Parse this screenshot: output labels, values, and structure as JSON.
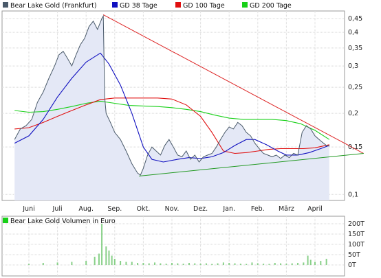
{
  "chart_data": [
    {
      "type": "line",
      "y_scale": "log",
      "ylim": [
        0.095,
        0.48
      ],
      "y_ticks": [
        "0,45",
        "0,4",
        "0,35",
        "0,3",
        "0,25",
        "0,2",
        "0,15",
        "0,1"
      ],
      "y_tick_values": [
        0.45,
        0.4,
        0.35,
        0.3,
        0.25,
        0.2,
        0.15,
        0.1
      ],
      "x_ticks": [
        "Juni",
        "Juli",
        "Aug.",
        "Sep.",
        "Okt.",
        "Nov.",
        "Dez.",
        "Jan.",
        "Feb.",
        "März",
        "April"
      ],
      "legend": [
        "Bear Lake Gold (Frankfurt)",
        "GD 38 Tage",
        "GD 100 Tage",
        "GD 200 Tage"
      ],
      "colors": {
        "price": "#4a5a6a",
        "area": "#e4e8f6",
        "gd38": "#1010c0",
        "gd100": "#e01010",
        "gd200": "#18d018",
        "trend_upper": "#dd2222",
        "trend_lower": "#229922"
      },
      "series": [
        {
          "name": "Bear Lake Gold (Frankfurt)",
          "points": [
            [
              -0.5,
              0.16
            ],
            [
              -0.3,
              0.175
            ],
            [
              -0.1,
              0.18
            ],
            [
              0.1,
              0.19
            ],
            [
              0.3,
              0.22
            ],
            [
              0.5,
              0.24
            ],
            [
              0.7,
              0.27
            ],
            [
              0.9,
              0.3
            ],
            [
              1.05,
              0.33
            ],
            [
              1.2,
              0.34
            ],
            [
              1.35,
              0.32
            ],
            [
              1.5,
              0.3
            ],
            [
              1.65,
              0.33
            ],
            [
              1.8,
              0.36
            ],
            [
              1.95,
              0.38
            ],
            [
              2.1,
              0.42
            ],
            [
              2.25,
              0.44
            ],
            [
              2.4,
              0.41
            ],
            [
              2.55,
              0.45
            ],
            [
              2.6,
              0.46
            ],
            [
              2.65,
              0.23
            ],
            [
              2.7,
              0.2
            ],
            [
              2.85,
              0.185
            ],
            [
              3.0,
              0.17
            ],
            [
              3.2,
              0.16
            ],
            [
              3.4,
              0.145
            ],
            [
              3.6,
              0.13
            ],
            [
              3.8,
              0.12
            ],
            [
              3.9,
              0.118
            ],
            [
              4.0,
              0.125
            ],
            [
              4.15,
              0.14
            ],
            [
              4.3,
              0.15
            ],
            [
              4.45,
              0.145
            ],
            [
              4.6,
              0.14
            ],
            [
              4.75,
              0.152
            ],
            [
              4.9,
              0.16
            ],
            [
              5.05,
              0.15
            ],
            [
              5.2,
              0.14
            ],
            [
              5.35,
              0.138
            ],
            [
              5.5,
              0.145
            ],
            [
              5.65,
              0.135
            ],
            [
              5.8,
              0.14
            ],
            [
              5.95,
              0.132
            ],
            [
              6.1,
              0.138
            ],
            [
              6.25,
              0.14
            ],
            [
              6.4,
              0.142
            ],
            [
              6.55,
              0.15
            ],
            [
              6.7,
              0.16
            ],
            [
              6.85,
              0.17
            ],
            [
              7.0,
              0.178
            ],
            [
              7.15,
              0.175
            ],
            [
              7.3,
              0.185
            ],
            [
              7.45,
              0.18
            ],
            [
              7.6,
              0.17
            ],
            [
              7.75,
              0.165
            ],
            [
              7.9,
              0.155
            ],
            [
              8.05,
              0.148
            ],
            [
              8.2,
              0.142
            ],
            [
              8.35,
              0.14
            ],
            [
              8.5,
              0.138
            ],
            [
              8.65,
              0.14
            ],
            [
              8.8,
              0.136
            ],
            [
              8.95,
              0.14
            ],
            [
              9.1,
              0.137
            ],
            [
              9.25,
              0.142
            ],
            [
              9.4,
              0.14
            ],
            [
              9.55,
              0.17
            ],
            [
              9.7,
              0.18
            ],
            [
              9.85,
              0.175
            ],
            [
              10.0,
              0.165
            ],
            [
              10.2,
              0.158
            ],
            [
              10.4,
              0.152
            ],
            [
              10.5,
              0.151
            ]
          ]
        },
        {
          "name": "GD 38 Tage",
          "points": [
            [
              -0.5,
              0.155
            ],
            [
              0.0,
              0.165
            ],
            [
              0.5,
              0.19
            ],
            [
              1.0,
              0.23
            ],
            [
              1.5,
              0.27
            ],
            [
              2.0,
              0.31
            ],
            [
              2.5,
              0.335
            ],
            [
              2.8,
              0.305
            ],
            [
              3.2,
              0.255
            ],
            [
              3.6,
              0.2
            ],
            [
              4.0,
              0.15
            ],
            [
              4.3,
              0.135
            ],
            [
              4.7,
              0.132
            ],
            [
              5.2,
              0.135
            ],
            [
              5.6,
              0.137
            ],
            [
              6.0,
              0.136
            ],
            [
              6.4,
              0.138
            ],
            [
              6.8,
              0.143
            ],
            [
              7.2,
              0.152
            ],
            [
              7.6,
              0.16
            ],
            [
              7.9,
              0.16
            ],
            [
              8.3,
              0.153
            ],
            [
              8.7,
              0.145
            ],
            [
              9.0,
              0.14
            ],
            [
              9.4,
              0.14
            ],
            [
              9.8,
              0.143
            ],
            [
              10.2,
              0.148
            ],
            [
              10.5,
              0.152
            ]
          ]
        },
        {
          "name": "GD 100 Tage",
          "points": [
            [
              -0.5,
              0.175
            ],
            [
              0.0,
              0.177
            ],
            [
              0.5,
              0.185
            ],
            [
              1.0,
              0.195
            ],
            [
              1.5,
              0.205
            ],
            [
              2.0,
              0.215
            ],
            [
              2.5,
              0.225
            ],
            [
              3.0,
              0.228
            ],
            [
              3.5,
              0.228
            ],
            [
              4.0,
              0.228
            ],
            [
              4.5,
              0.228
            ],
            [
              5.0,
              0.226
            ],
            [
              5.5,
              0.215
            ],
            [
              6.0,
              0.195
            ],
            [
              6.4,
              0.17
            ],
            [
              6.8,
              0.145
            ],
            [
              7.2,
              0.142
            ],
            [
              7.6,
              0.143
            ],
            [
              8.0,
              0.145
            ],
            [
              8.4,
              0.147
            ],
            [
              8.8,
              0.148
            ],
            [
              9.2,
              0.148
            ],
            [
              9.6,
              0.148
            ],
            [
              10.0,
              0.149
            ],
            [
              10.5,
              0.153
            ]
          ]
        },
        {
          "name": "GD 200 Tage",
          "points": [
            [
              -0.5,
              0.205
            ],
            [
              0.0,
              0.202
            ],
            [
              0.5,
              0.203
            ],
            [
              1.0,
              0.207
            ],
            [
              1.5,
              0.212
            ],
            [
              2.0,
              0.218
            ],
            [
              2.5,
              0.222
            ],
            [
              3.0,
              0.218
            ],
            [
              3.5,
              0.214
            ],
            [
              4.0,
              0.213
            ],
            [
              4.5,
              0.212
            ],
            [
              5.0,
              0.21
            ],
            [
              5.5,
              0.207
            ],
            [
              6.0,
              0.203
            ],
            [
              6.5,
              0.197
            ],
            [
              7.0,
              0.192
            ],
            [
              7.5,
              0.19
            ],
            [
              8.0,
              0.19
            ],
            [
              8.5,
              0.19
            ],
            [
              9.0,
              0.188
            ],
            [
              9.5,
              0.183
            ],
            [
              10.0,
              0.173
            ],
            [
              10.5,
              0.16
            ]
          ]
        }
      ],
      "trendlines": [
        {
          "points": [
            [
              2.6,
              0.465
            ],
            [
              11.7,
              0.142
            ]
          ]
        },
        {
          "points": [
            [
              3.85,
              0.117
            ],
            [
              11.7,
              0.142
            ]
          ]
        }
      ]
    },
    {
      "type": "bar",
      "legend": [
        "Bear Lake Gold Volumen in Euro"
      ],
      "y_ticks": [
        "200T",
        "150T",
        "100T",
        "50T",
        "0T"
      ],
      "y_tick_values": [
        200,
        150,
        100,
        50,
        0
      ],
      "ylim": [
        0,
        200
      ],
      "colors": {
        "bars": "#88d088"
      },
      "x": [
        0.0,
        0.5,
        1.0,
        1.5,
        2.0,
        2.3,
        2.45,
        2.55,
        2.7,
        2.8,
        2.9,
        3.0,
        3.2,
        3.4,
        3.6,
        3.8,
        4.0,
        4.2,
        4.4,
        4.6,
        4.8,
        5.0,
        5.2,
        5.4,
        5.6,
        5.8,
        6.0,
        6.2,
        6.4,
        6.6,
        6.8,
        7.0,
        7.2,
        7.4,
        7.6,
        7.8,
        8.0,
        8.2,
        8.4,
        8.6,
        8.8,
        9.0,
        9.2,
        9.4,
        9.6,
        9.75,
        9.85,
        10.0,
        10.2,
        10.4
      ],
      "values": [
        5,
        10,
        12,
        15,
        20,
        40,
        55,
        200,
        90,
        70,
        45,
        30,
        20,
        15,
        15,
        10,
        10,
        8,
        12,
        8,
        6,
        10,
        8,
        6,
        10,
        8,
        6,
        8,
        5,
        8,
        12,
        10,
        8,
        6,
        5,
        12,
        8,
        6,
        5,
        10,
        8,
        6,
        8,
        10,
        12,
        45,
        25,
        15,
        20,
        30
      ]
    }
  ]
}
